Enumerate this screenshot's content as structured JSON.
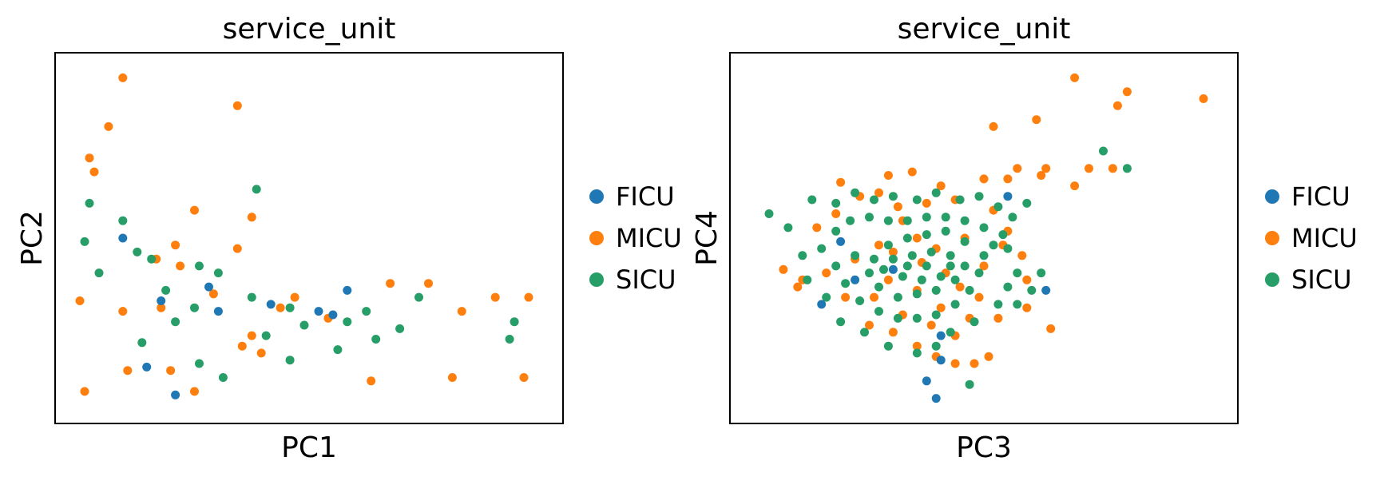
{
  "chart_data": [
    {
      "type": "scatter",
      "title": "service_unit",
      "xlabel": "PC1",
      "ylabel": "PC2",
      "xlim": [
        0,
        100
      ],
      "ylim": [
        0,
        100
      ],
      "legend_placement": "right",
      "categories": [
        "FICU",
        "MICU",
        "SICU"
      ],
      "colors": {
        "FICU": "#1f77b4",
        "MICU": "#ff7f0e",
        "SICU": "#279e68"
      },
      "series": [
        {
          "name": "MICU",
          "points": [
            [
              11,
              96
            ],
            [
              35,
              88
            ],
            [
              8,
              82
            ],
            [
              4,
              73
            ],
            [
              5,
              69
            ],
            [
              26,
              58
            ],
            [
              38,
              56
            ],
            [
              22,
              48
            ],
            [
              18,
              44
            ],
            [
              23,
              42
            ],
            [
              2,
              32
            ],
            [
              11,
              29
            ],
            [
              19,
              30
            ],
            [
              38,
              22
            ],
            [
              54,
              27
            ],
            [
              67,
              37
            ],
            [
              75,
              37
            ],
            [
              82,
              29
            ],
            [
              89,
              33
            ],
            [
              96,
              33
            ],
            [
              95,
              10
            ],
            [
              80,
              10
            ],
            [
              63,
              9
            ],
            [
              40,
              17
            ],
            [
              44,
              30
            ],
            [
              47,
              33
            ],
            [
              35,
              47
            ],
            [
              30,
              34
            ],
            [
              3,
              6
            ],
            [
              12,
              12
            ],
            [
              21,
              12
            ],
            [
              26,
              6
            ],
            [
              36,
              19
            ]
          ]
        },
        {
          "name": "SICU",
          "points": [
            [
              39,
              64
            ],
            [
              11,
              55
            ],
            [
              4,
              60
            ],
            [
              17,
              44
            ],
            [
              27,
              42
            ],
            [
              31,
              40
            ],
            [
              38,
              33
            ],
            [
              46,
              30
            ],
            [
              62,
              29
            ],
            [
              64,
              21
            ],
            [
              69,
              24
            ],
            [
              73,
              33
            ],
            [
              93,
              26
            ],
            [
              92,
              21
            ],
            [
              46,
              15
            ],
            [
              49,
              25
            ],
            [
              58,
              26
            ],
            [
              56,
              18
            ],
            [
              41,
              22
            ],
            [
              22,
              26
            ],
            [
              15,
              20
            ],
            [
              27,
              14
            ],
            [
              32,
              10
            ],
            [
              26,
              30
            ],
            [
              20,
              35
            ],
            [
              14,
              46
            ],
            [
              6,
              40
            ],
            [
              3,
              49
            ]
          ]
        },
        {
          "name": "FICU",
          "points": [
            [
              11,
              50
            ],
            [
              31,
              29
            ],
            [
              19,
              32
            ],
            [
              16,
              13
            ],
            [
              55,
              28
            ],
            [
              58,
              35
            ],
            [
              52,
              29
            ],
            [
              29,
              36
            ],
            [
              42,
              31
            ],
            [
              22,
              5
            ]
          ]
        }
      ]
    },
    {
      "type": "scatter",
      "title": "service_unit",
      "xlabel": "PC3",
      "ylabel": "PC4",
      "xlim": [
        0,
        100
      ],
      "ylim": [
        0,
        100
      ],
      "legend_placement": "right",
      "categories": [
        "FICU",
        "MICU",
        "SICU"
      ],
      "colors": {
        "FICU": "#1f77b4",
        "MICU": "#ff7f0e",
        "SICU": "#279e68"
      },
      "series": [
        {
          "name": "MICU",
          "points": [
            [
              69,
              96
            ],
            [
              80,
              92
            ],
            [
              78,
              88
            ],
            [
              96,
              90
            ],
            [
              52,
              82
            ],
            [
              61,
              84
            ],
            [
              69,
              65
            ],
            [
              77,
              70
            ],
            [
              72,
              70
            ],
            [
              63,
              70
            ],
            [
              62,
              68
            ],
            [
              57,
              70
            ],
            [
              55,
              67
            ],
            [
              50,
              67
            ],
            [
              41,
              65
            ],
            [
              35,
              69
            ],
            [
              30,
              68
            ],
            [
              20,
              66
            ],
            [
              8,
              41
            ],
            [
              11,
              36
            ],
            [
              12,
              38
            ],
            [
              21,
              33
            ],
            [
              26,
              25
            ],
            [
              31,
              23
            ],
            [
              36,
              19
            ],
            [
              40,
              16
            ],
            [
              44,
              14
            ],
            [
              48,
              14
            ],
            [
              51,
              16
            ],
            [
              53,
              27
            ],
            [
              59,
              30
            ],
            [
              64,
              24
            ],
            [
              59,
              38
            ],
            [
              58,
              45
            ],
            [
              54,
              48
            ],
            [
              55,
              52
            ],
            [
              52,
              58
            ],
            [
              44,
              61
            ],
            [
              38,
              60
            ],
            [
              33,
              55
            ],
            [
              28,
              48
            ],
            [
              23,
              44
            ],
            [
              17,
              40
            ],
            [
              15,
              53
            ],
            [
              19,
              57
            ],
            [
              24,
              62
            ],
            [
              28,
              63
            ],
            [
              32,
              59
            ],
            [
              36,
              50
            ],
            [
              40,
              47
            ],
            [
              46,
              50
            ],
            [
              50,
              42
            ],
            [
              45,
              36
            ],
            [
              41,
              30
            ],
            [
              36,
              35
            ],
            [
              30,
              38
            ],
            [
              27,
              33
            ],
            [
              33,
              28
            ],
            [
              39,
              25
            ],
            [
              44,
              22
            ],
            [
              47,
              27
            ],
            [
              49,
              33
            ],
            [
              42,
              40
            ],
            [
              37,
              43
            ],
            [
              31,
              46
            ]
          ]
        },
        {
          "name": "SICU",
          "points": [
            [
              5,
              57
            ],
            [
              9,
              53
            ],
            [
              14,
              61
            ],
            [
              19,
              60
            ],
            [
              23,
              63
            ],
            [
              27,
              61
            ],
            [
              31,
              62
            ],
            [
              36,
              61
            ],
            [
              40,
              63
            ],
            [
              45,
              61
            ],
            [
              49,
              62
            ],
            [
              53,
              59
            ],
            [
              56,
              56
            ],
            [
              54,
              51
            ],
            [
              55,
              47
            ],
            [
              57,
              40
            ],
            [
              55,
              36
            ],
            [
              53,
              31
            ],
            [
              48,
              26
            ],
            [
              43,
              23
            ],
            [
              40,
              19
            ],
            [
              36,
              17
            ],
            [
              30,
              19
            ],
            [
              25,
              23
            ],
            [
              20,
              26
            ],
            [
              17,
              33
            ],
            [
              13,
              38
            ],
            [
              12,
              45
            ],
            [
              16,
              47
            ],
            [
              19,
              52
            ],
            [
              22,
              55
            ],
            [
              26,
              56
            ],
            [
              30,
              55
            ],
            [
              34,
              55
            ],
            [
              38,
              56
            ],
            [
              42,
              56
            ],
            [
              46,
              55
            ],
            [
              50,
              53
            ],
            [
              52,
              48
            ],
            [
              50,
              45
            ],
            [
              49,
              40
            ],
            [
              47,
              35
            ],
            [
              44,
              31
            ],
            [
              40,
              28
            ],
            [
              36,
              27
            ],
            [
              32,
              27
            ],
            [
              28,
              29
            ],
            [
              24,
              32
            ],
            [
              21,
              37
            ],
            [
              19,
              42
            ],
            [
              23,
              45
            ],
            [
              27,
              44
            ],
            [
              31,
              44
            ],
            [
              35,
              45
            ],
            [
              39,
              46
            ],
            [
              43,
              45
            ],
            [
              46,
              42
            ],
            [
              44,
              38
            ],
            [
              40,
              35
            ],
            [
              36,
              34
            ],
            [
              32,
              33
            ],
            [
              28,
              36
            ],
            [
              26,
              40
            ],
            [
              29,
              41
            ],
            [
              33,
              39
            ],
            [
              37,
              38
            ],
            [
              41,
              39
            ],
            [
              43,
              42
            ],
            [
              38,
              42
            ],
            [
              34,
              42
            ],
            [
              30,
              48
            ],
            [
              34,
              50
            ],
            [
              38,
              51
            ],
            [
              42,
              52
            ],
            [
              46,
              49
            ],
            [
              60,
              35
            ],
            [
              75,
              75
            ],
            [
              80,
              70
            ],
            [
              59,
              60
            ],
            [
              62,
              40
            ],
            [
              57,
              31
            ],
            [
              47,
              8
            ]
          ]
        },
        {
          "name": "FICU",
          "points": [
            [
              55,
              62
            ],
            [
              63,
              35
            ],
            [
              41,
              15
            ],
            [
              38,
              9
            ],
            [
              16,
              31
            ],
            [
              31,
              41
            ],
            [
              23,
              38
            ],
            [
              41,
              22
            ],
            [
              20,
              49
            ],
            [
              40,
              4
            ]
          ]
        }
      ]
    }
  ]
}
